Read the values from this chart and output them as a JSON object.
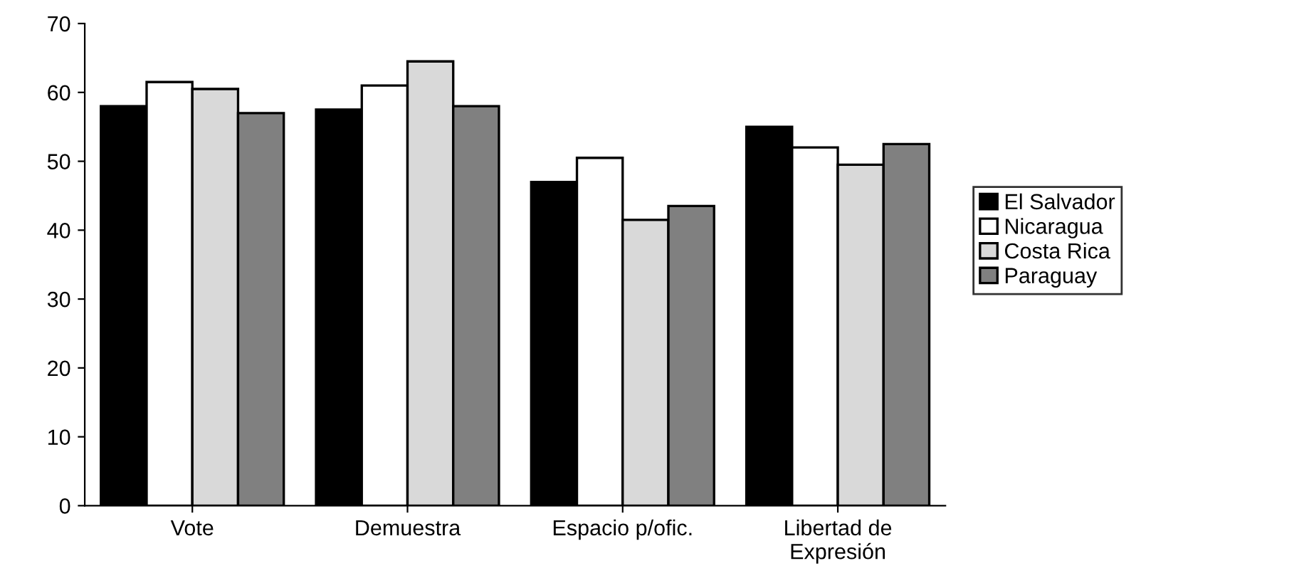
{
  "chart_data": {
    "type": "bar",
    "categories": [
      "Vote",
      "Demuestra",
      "Espacio p/ofic.",
      "Libertad de\nExpresión"
    ],
    "series": [
      {
        "name": "El Salvador",
        "color": "#000000",
        "values": [
          58,
          57.5,
          47,
          55
        ]
      },
      {
        "name": "Nicaragua",
        "color": "#ffffff",
        "values": [
          61.5,
          61,
          50.5,
          52
        ]
      },
      {
        "name": "Costa Rica",
        "color": "#d9d9d9",
        "values": [
          60.5,
          64.5,
          41.5,
          49.5
        ]
      },
      {
        "name": "Paraguay",
        "color": "#808080",
        "values": [
          57,
          58,
          43.5,
          52.5
        ]
      }
    ],
    "ylim": [
      0,
      70
    ],
    "yticks": [
      0,
      10,
      20,
      30,
      40,
      50,
      60,
      70
    ],
    "grid": false,
    "legend": "right"
  }
}
